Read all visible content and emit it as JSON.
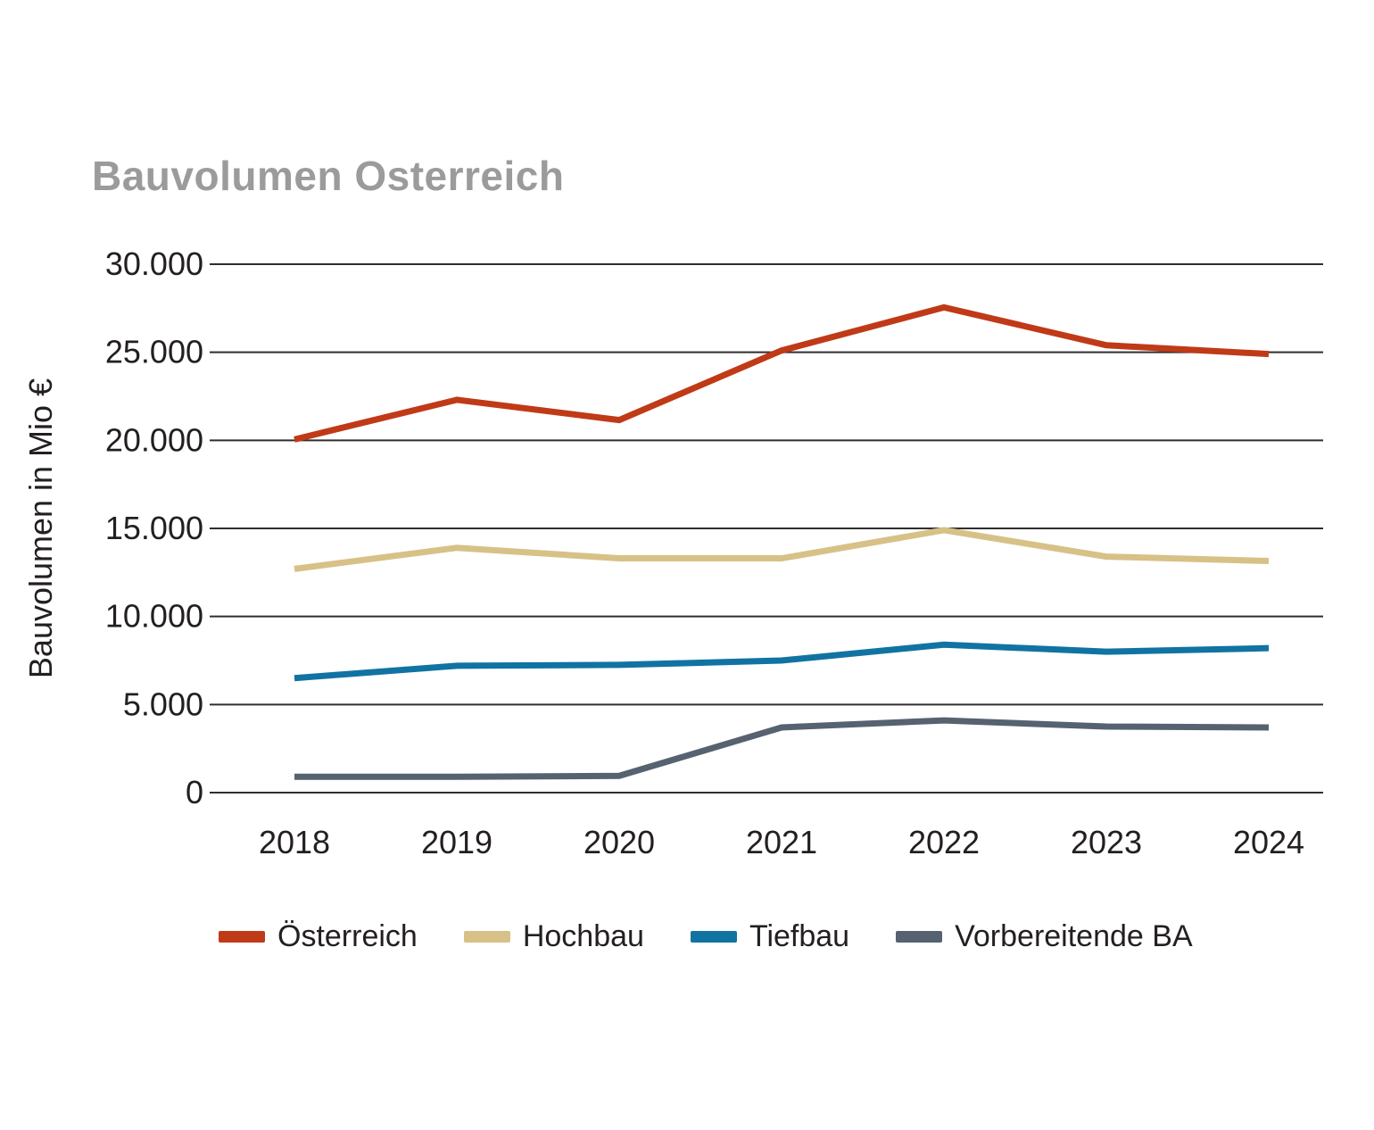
{
  "title": "Bauvolumen Osterreich",
  "chart_data": {
    "type": "line",
    "title": "Bauvolumen Osterreich",
    "xlabel": "",
    "ylabel": "Bauvolumen in Mio €",
    "categories": [
      "2018",
      "2019",
      "2020",
      "2021",
      "2022",
      "2023",
      "2024"
    ],
    "series": [
      {
        "name": "Österreich",
        "color": "#c03a17",
        "values": [
          20050,
          22300,
          21150,
          25100,
          27550,
          25400,
          24900
        ]
      },
      {
        "name": "Hochbau",
        "color": "#d8c187",
        "values": [
          12700,
          13900,
          13300,
          13300,
          14900,
          13400,
          13150
        ]
      },
      {
        "name": "Tiefbau",
        "color": "#1173a1",
        "values": [
          6500,
          7200,
          7250,
          7500,
          8400,
          8000,
          8200
        ]
      },
      {
        "name": "Vorbereitende BA",
        "color": "#566270",
        "values": [
          900,
          900,
          950,
          3700,
          4100,
          3750,
          3700
        ]
      }
    ],
    "ylim": [
      0,
      30000
    ],
    "ytick_step": 5000,
    "ytick_labels": [
      "0",
      "5.000",
      "10.000",
      "15.000",
      "20.000",
      "25.000",
      "30.000"
    ],
    "grid": "horizontal",
    "legend_position": "bottom",
    "colors": {
      "title": "#9b9b9b",
      "axis_text": "#231f20",
      "gridline": "#2e2e2e"
    }
  }
}
